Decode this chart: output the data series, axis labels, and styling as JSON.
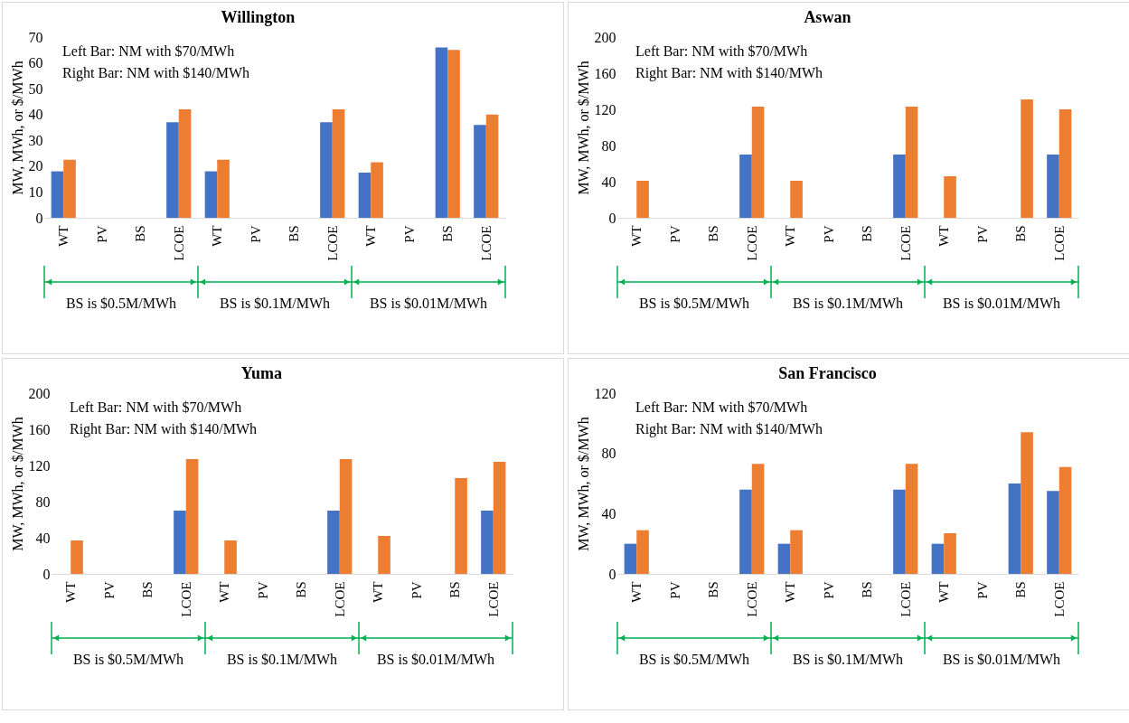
{
  "chart_data": [
    {
      "type": "bar",
      "title": "Willington",
      "ylabel": "MW, MWh, or $/MWh",
      "categories": [
        "WT",
        "PV",
        "BS",
        "LCOE",
        "WT",
        "PV",
        "BS",
        "LCOE",
        "WT",
        "PV",
        "BS",
        "LCOE"
      ],
      "ylim": [
        0,
        70
      ],
      "yticks": [
        0,
        10,
        20,
        30,
        40,
        50,
        60,
        70
      ],
      "annotations": [
        "Left Bar: NM with $70/MWh",
        "Right Bar: NM with $140/MWh",
        "BS is $0.5M/MWh",
        "BS is $0.1M/MWh",
        "BS is $0.01M/MWh"
      ],
      "series": [
        {
          "color": "#4472c4",
          "values": [
            18,
            0,
            0,
            37,
            18,
            0,
            0,
            37,
            17.5,
            0,
            66,
            36
          ]
        },
        {
          "color": "#ed7d31",
          "values": [
            22.5,
            0,
            0,
            42,
            22.5,
            0,
            0,
            42,
            21.5,
            0,
            65,
            40
          ]
        }
      ]
    },
    {
      "type": "bar",
      "title": "Aswan",
      "ylabel": "MW, MWh, or $/MWh",
      "categories": [
        "WT",
        "PV",
        "BS",
        "LCOE",
        "WT",
        "PV",
        "BS",
        "LCOE",
        "WT",
        "PV",
        "BS",
        "LCOE"
      ],
      "ylim": [
        0,
        200
      ],
      "yticks": [
        0,
        40,
        80,
        120,
        160,
        200
      ],
      "annotations": [
        "Left Bar: NM with $70/MWh",
        "Right Bar: NM with $140/MWh",
        "BS is $0.5M/MWh",
        "BS is $0.1M/MWh",
        "BS is $0.01M/MWh"
      ],
      "series": [
        {
          "color": "#4472c4",
          "values": [
            0,
            0,
            0,
            70,
            0,
            0,
            0,
            70,
            0,
            0,
            0,
            70
          ]
        },
        {
          "color": "#ed7d31",
          "values": [
            41,
            0,
            0,
            123,
            41,
            0,
            0,
            123,
            46,
            0,
            131,
            120
          ]
        }
      ]
    },
    {
      "type": "bar",
      "title": "Yuma",
      "ylabel": "MW, MWh, or $/MWh",
      "categories": [
        "WT",
        "PV",
        "BS",
        "LCOE",
        "WT",
        "PV",
        "BS",
        "LCOE",
        "WT",
        "PV",
        "BS",
        "LCOE"
      ],
      "ylim": [
        0,
        200
      ],
      "yticks": [
        0,
        40,
        80,
        120,
        160,
        200
      ],
      "annotations": [
        "Left Bar: NM with $70/MWh",
        "Right Bar: NM with $140/MWh",
        "BS is $0.5M/MWh",
        "BS is $0.1M/MWh",
        "BS is $0.01M/MWh"
      ],
      "series": [
        {
          "color": "#4472c4",
          "values": [
            0,
            0,
            0,
            70,
            0,
            0,
            0,
            70,
            0,
            0,
            0,
            70
          ]
        },
        {
          "color": "#ed7d31",
          "values": [
            37,
            0,
            0,
            127,
            37,
            0,
            0,
            127,
            42,
            0,
            106,
            124
          ]
        }
      ]
    },
    {
      "type": "bar",
      "title": "San Francisco",
      "ylabel": "MW, MWh, or $/MWh",
      "categories": [
        "WT",
        "PV",
        "BS",
        "LCOE",
        "WT",
        "PV",
        "BS",
        "LCOE",
        "WT",
        "PV",
        "BS",
        "LCOE"
      ],
      "ylim": [
        0,
        120
      ],
      "yticks": [
        0,
        40,
        80,
        120
      ],
      "annotations": [
        "Left Bar: NM with $70/MWh",
        "Right Bar: NM with $140/MWh",
        "BS is $0.5M/MWh",
        "BS is $0.1M/MWh",
        "BS is $0.01M/MWh"
      ],
      "series": [
        {
          "color": "#4472c4",
          "values": [
            20,
            0,
            0,
            56,
            20,
            0,
            0,
            56,
            20,
            0,
            60,
            55
          ]
        },
        {
          "color": "#ed7d31",
          "values": [
            29,
            0,
            0,
            73,
            29,
            0,
            0,
            73,
            27,
            0,
            94,
            71
          ]
        }
      ]
    }
  ]
}
